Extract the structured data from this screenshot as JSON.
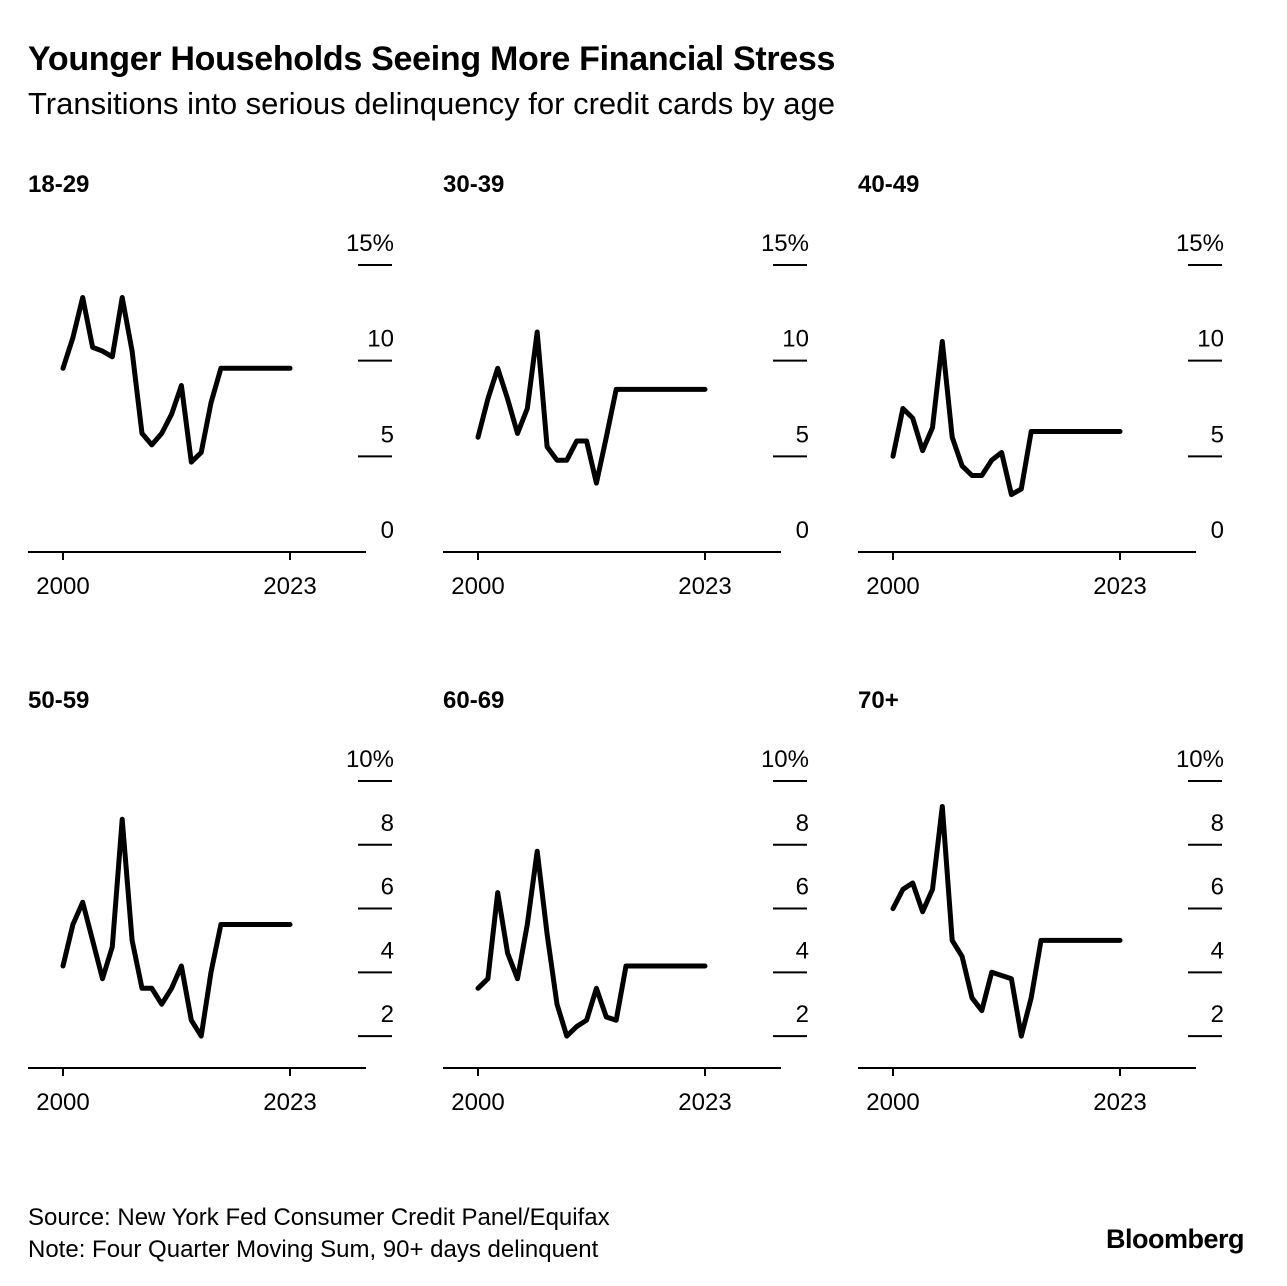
{
  "title": "Younger Households Seeing More Financial Stress",
  "subtitle": "Transitions into serious delinquency for credit cards by age",
  "source": "Source: New York Fed Consumer Credit Panel/Equifax",
  "note": "Note: Four Quarter Moving Sum, 90+ days delinquent",
  "brand": "Bloomberg",
  "chart_data": [
    {
      "type": "line",
      "title": "18-29",
      "x_start": 2000,
      "x_end": 2023,
      "xticks": [
        "2000",
        "2023"
      ],
      "ylim": [
        0,
        15
      ],
      "yticks": [
        0,
        5,
        10,
        15
      ],
      "ytick_labels": [
        "0",
        "5",
        "10",
        "15%"
      ],
      "x": [
        2000,
        2001,
        2002,
        2003,
        2004,
        2005,
        2006,
        2007,
        2008,
        2009,
        2010,
        2011,
        2012,
        2013,
        2014,
        2015,
        2016,
        2017,
        2018,
        2019,
        2020,
        2021,
        2022,
        2023
      ],
      "values": [
        9.6,
        11.2,
        13.3,
        10.7,
        10.5,
        10.2,
        13.3,
        10.5,
        6.2,
        5.6,
        6.2,
        7.2,
        8.7,
        4.7,
        5.2,
        7.8,
        9.6,
        9.6,
        9.6,
        9.6,
        9.6,
        9.6,
        9.6,
        9.6
      ]
    },
    {
      "type": "line",
      "title": "30-39",
      "x_start": 2000,
      "x_end": 2023,
      "xticks": [
        "2000",
        "2023"
      ],
      "ylim": [
        0,
        15
      ],
      "yticks": [
        0,
        5,
        10,
        15
      ],
      "ytick_labels": [
        "0",
        "5",
        "10",
        "15%"
      ],
      "x": [
        2000,
        2001,
        2002,
        2003,
        2004,
        2005,
        2006,
        2007,
        2008,
        2009,
        2010,
        2011,
        2012,
        2013,
        2014,
        2015,
        2016,
        2017,
        2018,
        2019,
        2020,
        2021,
        2022,
        2023
      ],
      "values": [
        6.0,
        8.0,
        9.6,
        8.0,
        6.2,
        7.5,
        11.5,
        5.5,
        4.8,
        4.8,
        5.8,
        5.8,
        3.6,
        6.0,
        8.5,
        8.5,
        8.5,
        8.5,
        8.5,
        8.5,
        8.5,
        8.5,
        8.5,
        8.5
      ]
    },
    {
      "type": "line",
      "title": "40-49",
      "x_start": 2000,
      "x_end": 2023,
      "xticks": [
        "2000",
        "2023"
      ],
      "ylim": [
        0,
        15
      ],
      "yticks": [
        0,
        5,
        10,
        15
      ],
      "ytick_labels": [
        "0",
        "5",
        "10",
        "15%"
      ],
      "x": [
        2000,
        2001,
        2002,
        2003,
        2004,
        2005,
        2006,
        2007,
        2008,
        2009,
        2010,
        2011,
        2012,
        2013,
        2014,
        2015,
        2016,
        2017,
        2018,
        2019,
        2020,
        2021,
        2022,
        2023
      ],
      "values": [
        5.0,
        7.5,
        7.0,
        5.3,
        6.5,
        11.0,
        6.0,
        4.5,
        4.0,
        4.0,
        4.8,
        5.2,
        3.0,
        3.3,
        6.3,
        6.3,
        6.3,
        6.3,
        6.3,
        6.3,
        6.3,
        6.3,
        6.3,
        6.3
      ]
    },
    {
      "type": "line",
      "title": "50-59",
      "x_start": 2000,
      "x_end": 2023,
      "xticks": [
        "2000",
        "2023"
      ],
      "ylim": [
        1,
        10
      ],
      "yticks": [
        2,
        4,
        6,
        8,
        10
      ],
      "ytick_labels": [
        "2",
        "4",
        "6",
        "8",
        "10%"
      ],
      "x": [
        2000,
        2001,
        2002,
        2003,
        2004,
        2005,
        2006,
        2007,
        2008,
        2009,
        2010,
        2011,
        2012,
        2013,
        2014,
        2015,
        2016,
        2017,
        2018,
        2019,
        2020,
        2021,
        2022,
        2023
      ],
      "values": [
        4.2,
        5.5,
        6.2,
        5.0,
        3.8,
        4.8,
        8.8,
        5.0,
        3.5,
        3.5,
        3.0,
        3.5,
        4.2,
        2.5,
        2.0,
        4.0,
        5.5,
        5.5,
        5.5,
        5.5,
        5.5,
        5.5,
        5.5,
        5.5
      ]
    },
    {
      "type": "line",
      "title": "60-69",
      "x_start": 2000,
      "x_end": 2023,
      "xticks": [
        "2000",
        "2023"
      ],
      "ylim": [
        1,
        10
      ],
      "yticks": [
        2,
        4,
        6,
        8,
        10
      ],
      "ytick_labels": [
        "2",
        "4",
        "6",
        "8",
        "10%"
      ],
      "x": [
        2000,
        2001,
        2002,
        2003,
        2004,
        2005,
        2006,
        2007,
        2008,
        2009,
        2010,
        2011,
        2012,
        2013,
        2014,
        2015,
        2016,
        2017,
        2018,
        2019,
        2020,
        2021,
        2022,
        2023
      ],
      "values": [
        3.5,
        3.8,
        6.5,
        4.6,
        3.8,
        5.5,
        7.8,
        5.2,
        3.0,
        2.0,
        2.3,
        2.5,
        3.5,
        2.6,
        2.5,
        4.2,
        4.2,
        4.2,
        4.2,
        4.2,
        4.2,
        4.2,
        4.2,
        4.2
      ]
    },
    {
      "type": "line",
      "title": "70+",
      "x_start": 2000,
      "x_end": 2023,
      "xticks": [
        "2000",
        "2023"
      ],
      "ylim": [
        1,
        10
      ],
      "yticks": [
        2,
        4,
        6,
        8,
        10
      ],
      "ytick_labels": [
        "2",
        "4",
        "6",
        "8",
        "10%"
      ],
      "x": [
        2000,
        2001,
        2002,
        2003,
        2004,
        2005,
        2006,
        2007,
        2008,
        2009,
        2010,
        2011,
        2012,
        2013,
        2014,
        2015,
        2016,
        2017,
        2018,
        2019,
        2020,
        2021,
        2022,
        2023
      ],
      "values": [
        6.0,
        6.6,
        6.8,
        5.9,
        6.6,
        9.2,
        5.0,
        4.5,
        3.2,
        2.8,
        4.0,
        3.9,
        3.8,
        2.0,
        3.2,
        5.0,
        5.0,
        5.0,
        5.0,
        5.0,
        5.0,
        5.0,
        5.0,
        5.0
      ]
    }
  ]
}
